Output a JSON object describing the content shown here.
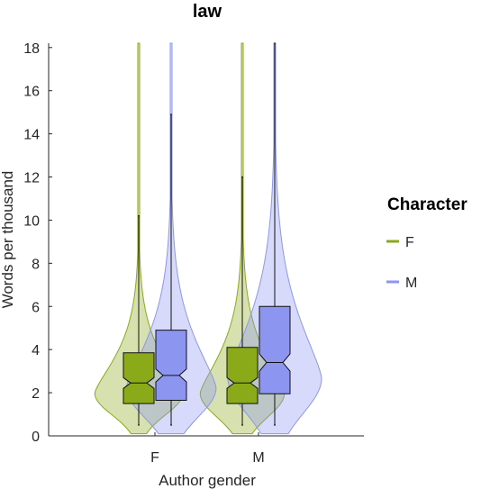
{
  "chart_data": {
    "type": "violin",
    "title": "law",
    "xlabel": "Author gender",
    "ylabel": "Words per thousand",
    "categories": [
      "F",
      "M"
    ],
    "ylim": [
      0,
      18.2
    ],
    "yticks": [
      0,
      2,
      4,
      6,
      8,
      10,
      12,
      14,
      16,
      18
    ],
    "grid": false,
    "legend": {
      "title": "Character",
      "placement": "right",
      "entries": [
        "F",
        "M"
      ]
    },
    "series": [
      {
        "name": "F",
        "color": "#8aaa19",
        "boxes": [
          {
            "category": "F",
            "q1": 1.5,
            "median": 2.45,
            "q3": 3.85,
            "whisker_low": 0.5,
            "whisker_high": 10.2,
            "notch_low": 2.2,
            "notch_high": 2.7,
            "violin_max": 18.2
          },
          {
            "category": "M",
            "q1": 1.5,
            "median": 2.45,
            "q3": 4.1,
            "whisker_low": 0.5,
            "whisker_high": 12.0,
            "notch_low": 2.2,
            "notch_high": 2.7,
            "violin_max": 18.2
          }
        ]
      },
      {
        "name": "M",
        "color": "#8c96f0",
        "boxes": [
          {
            "category": "F",
            "q1": 1.65,
            "median": 2.8,
            "q3": 4.9,
            "whisker_low": 0.5,
            "whisker_high": 14.9,
            "notch_low": 2.5,
            "notch_high": 3.1,
            "violin_max": 18.2
          },
          {
            "category": "M",
            "q1": 1.95,
            "median": 3.4,
            "q3": 6.0,
            "whisker_low": 0.5,
            "whisker_high": 18.2,
            "notch_low": 3.0,
            "notch_high": 3.8,
            "violin_max": 18.2
          }
        ]
      }
    ]
  }
}
